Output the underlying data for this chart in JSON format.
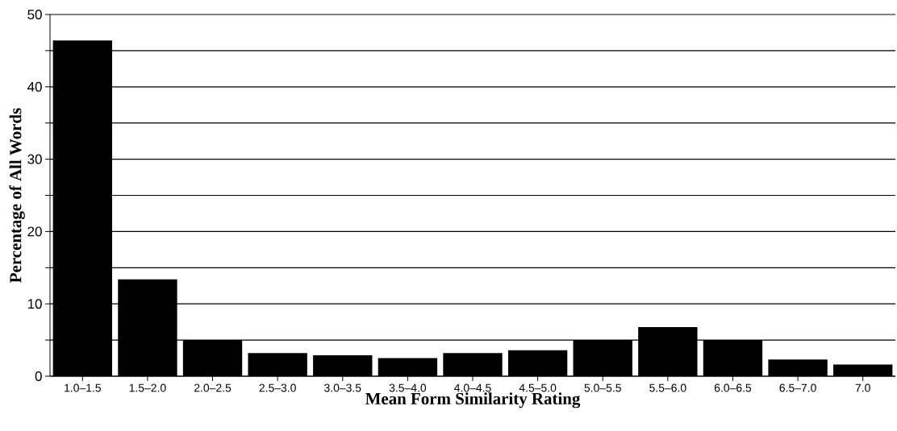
{
  "chart_data": {
    "type": "bar",
    "xlabel": "Mean Form Similarity Rating",
    "ylabel": "Percentage of All Words",
    "categories": [
      "1.0–1.5",
      "1.5–2.0",
      "2.0–2.5",
      "2.5–3.0",
      "3.0–3.5",
      "3.5–4.0",
      "4.0–4.5",
      "4.5–5.0",
      "5.0–5.5",
      "5.5–6.0",
      "6.0–6.5",
      "6.5–7.0",
      "7.0"
    ],
    "values": [
      46.4,
      13.4,
      5.0,
      3.2,
      2.9,
      2.5,
      3.2,
      3.6,
      5.0,
      6.8,
      5.0,
      2.3,
      1.6
    ],
    "color": "#000000",
    "ylim": [
      0,
      50
    ],
    "yticks": [
      0,
      {
        "value": 5,
        "label": null
      },
      10,
      {
        "value": 15,
        "label": null
      },
      20,
      {
        "value": 25,
        "label": null
      },
      30,
      {
        "value": 35,
        "label": null
      },
      40,
      {
        "value": 45,
        "label": null
      },
      50
    ],
    "grid": "y"
  }
}
